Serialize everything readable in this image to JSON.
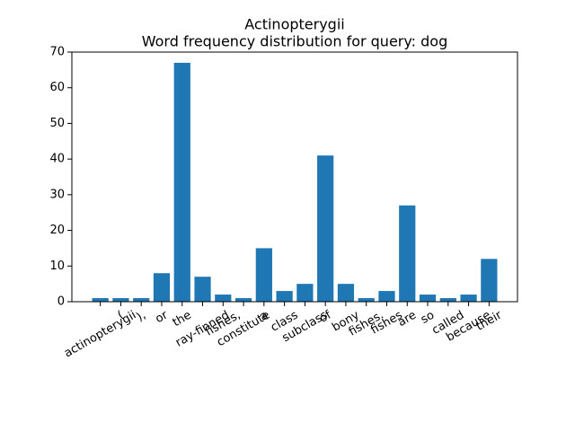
{
  "chart_data": {
    "type": "bar",
    "title": "Actinopterygii",
    "subtitle": "Word frequency distribution for query: dog",
    "categories": [
      "actinopterygii",
      "(",
      "),",
      "or",
      "the",
      "ray-finned",
      "fishes,",
      "constitute",
      "a",
      "class",
      "subclass",
      "of",
      "bony",
      "fishes.",
      "fishes",
      "are",
      "so",
      "called",
      "because",
      "their"
    ],
    "values": [
      1,
      1,
      1,
      8,
      67,
      7,
      2,
      1,
      15,
      3,
      5,
      41,
      5,
      1,
      3,
      27,
      2,
      1,
      2,
      12
    ],
    "color": "#1f77b4",
    "ylim": [
      0,
      70
    ],
    "yticks": [
      0,
      10,
      20,
      30,
      40,
      50,
      60,
      70
    ],
    "grid": false
  }
}
